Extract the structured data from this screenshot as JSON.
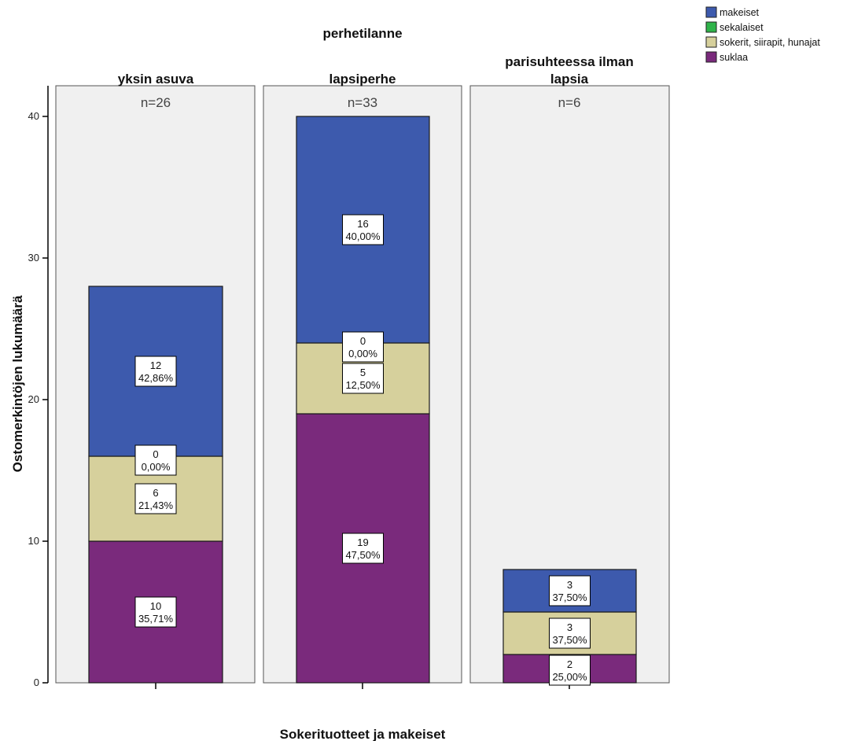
{
  "chart_data": {
    "type": "bar",
    "stacked": true,
    "title": "perhetilanne",
    "xlabel": "Sokerituotteet ja makeiset",
    "ylabel": "Ostomerkintöjen lukumäärä",
    "ylim": [
      0,
      42
    ],
    "yticks": [
      "0",
      "10",
      "20",
      "30",
      "40"
    ],
    "grid": false,
    "legend_position": "top-right",
    "panels": [
      {
        "title_lines": [
          "yksin asuva"
        ],
        "n_label": "n=26"
      },
      {
        "title_lines": [
          "lapsiperhe"
        ],
        "n_label": "n=33"
      },
      {
        "title_lines": [
          "parisuhteessa ilman",
          "lapsia"
        ],
        "n_label": "n=6"
      }
    ],
    "series": [
      {
        "name": "suklaa",
        "color": "#7a2a7c",
        "values": [
          10,
          19,
          2
        ],
        "labels": [
          [
            "10",
            "35,71%"
          ],
          [
            "19",
            "47,50%"
          ],
          [
            "2",
            "25,00%"
          ]
        ]
      },
      {
        "name": "sokerit, siirapit, hunajat",
        "color": "#d6d09c",
        "values": [
          6,
          5,
          3
        ],
        "labels": [
          [
            "6",
            "21,43%"
          ],
          [
            "5",
            "12,50%"
          ],
          [
            "3",
            "37,50%"
          ]
        ]
      },
      {
        "name": "sekalaiset",
        "color": "#2fb34a",
        "values": [
          0,
          0,
          0
        ],
        "labels": [
          [
            "0",
            "0,00%"
          ],
          [
            "0",
            "0,00%"
          ],
          null
        ]
      },
      {
        "name": "makeiset",
        "color": "#3d5aad",
        "values": [
          12,
          16,
          3
        ],
        "labels": [
          [
            "12",
            "42,86%"
          ],
          [
            "16",
            "40,00%"
          ],
          [
            "3",
            "37,50%"
          ]
        ]
      }
    ],
    "legend_order": [
      "makeiset",
      "sekalaiset",
      "sokerit, siirapit, hunajat",
      "suklaa"
    ],
    "colors": {
      "panel_bg": "#f0f0f0",
      "axis": "#000000"
    }
  }
}
